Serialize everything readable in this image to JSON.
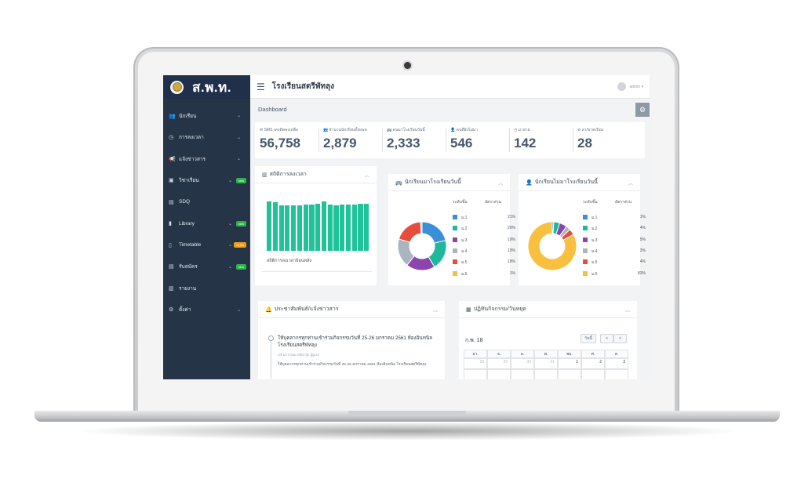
{
  "app": {
    "brand": "ส.พ.ท.",
    "school_name": "โรงเรียนสตรีพัทลุง",
    "user_name": "admin ▾"
  },
  "sidebar": {
    "items": [
      {
        "label": "นักเรียน",
        "icon": "users-icon",
        "badge": ""
      },
      {
        "label": "การลงเวลา",
        "icon": "clock-icon",
        "badge": ""
      },
      {
        "label": "แจ้งข่าวสาร",
        "icon": "megaphone-icon",
        "badge": ""
      },
      {
        "label": "วิชาเรียน",
        "icon": "calendar-check-icon",
        "badge": "new"
      },
      {
        "label": "SDQ",
        "icon": "clipboard-icon",
        "badge": ""
      },
      {
        "label": "Library",
        "icon": "book-icon",
        "badge": "new"
      },
      {
        "label": "Timetable",
        "icon": "file-icon",
        "badge": "alpha"
      },
      {
        "label": "รับสมัคร",
        "icon": "form-icon",
        "badge": "new"
      },
      {
        "label": "รายงาน",
        "icon": "bar-chart-icon",
        "badge": ""
      },
      {
        "label": "ตั้งค่า",
        "icon": "cogs-icon",
        "badge": ""
      }
    ]
  },
  "page": {
    "title": "Dashboard"
  },
  "stats": [
    {
      "label": "SMS เครดิตคงเหลือ",
      "value": "56,758",
      "icon": "sms-icon"
    },
    {
      "label": "จำนวนนักเรียนทั้งหมด",
      "value": "2,879",
      "icon": "users-icon"
    },
    {
      "label": "คนมาโรงเรียนวันนี้",
      "value": "2,333",
      "icon": "bus-icon"
    },
    {
      "label": "คนที่ยังไม่มา",
      "value": "546",
      "icon": "user-times-icon"
    },
    {
      "label": "มาสาย",
      "value": "142",
      "icon": "clock-icon"
    },
    {
      "label": "ลา/ขาดเรียน",
      "value": "28",
      "icon": "ban-icon"
    }
  ],
  "cards": {
    "time_stats": {
      "title": "สถิติการลงเวลา",
      "caption": "สถิติการลงเวลาย้อนหลัง"
    },
    "present_today": {
      "title": "นักเรียนมาโรงเรียนวันนี้",
      "col_level": "ระดับชั้น",
      "col_pct": "อัตราส่วน"
    },
    "absent_today": {
      "title": "นักเรียนไม่มาโรงเรียนวันนี้",
      "col_level": "ระดับชั้น",
      "col_pct": "อัตราส่วน"
    },
    "news": {
      "title": "ประชาสัมพันธ์/แจ้งข่าวสาร",
      "item_title": "ให้บุคลากรทุกท่านเข้าร่วมกิจกรรมวันที่ 25-26 มกราคม 2561 ห้องอินทนิล โรงเรียนสตรีพัทลุง",
      "item_meta": "24 มกราคม 2561 by ผู้ดูแล",
      "item_body": "ให้บุคลากรทุกท่านเข้าร่วมกิจกรรมวันที่ 25-26 มกราคม 2561 ห้องอินทนิล โรงเรียนสตรีพัทลุง"
    },
    "calendar": {
      "title": "ปฏิทินกิจกรรม/วันหยุด",
      "month": "ก.พ. 18",
      "today_label": "วันนี้",
      "prev": "<",
      "next": ">",
      "weekdays": [
        "อา.",
        "จ.",
        "อ.",
        "พ.",
        "พฤ.",
        "ศ.",
        "ส."
      ],
      "first_week": [
        "28",
        "29",
        "30",
        "31",
        "1",
        "2",
        "3"
      ]
    }
  },
  "chart_data": [
    {
      "type": "bar",
      "title": "สถิติการลงเวลา",
      "xlabel": "สถิติการลงเวลาย้อนหลัง",
      "ylabel": "",
      "values": [
        88,
        86,
        80,
        81,
        81,
        81,
        82,
        82,
        83,
        87,
        82,
        80,
        82,
        82,
        82,
        83,
        83
      ],
      "ylim": [
        0,
        100
      ],
      "color": "#20c29a"
    },
    {
      "type": "pie",
      "title": "นักเรียนมาโรงเรียนวันนี้",
      "categories": [
        "ม.1",
        "ม.2",
        "ม.3",
        "ม.4",
        "ม.5",
        "ม.6"
      ],
      "values": [
        21,
        20,
        19,
        19,
        19,
        1
      ],
      "labels": [
        "21%",
        "20%",
        "19%",
        "19%",
        "19%",
        "1%"
      ],
      "colors": [
        "#3b8fd9",
        "#20b89a",
        "#8e44ad",
        "#a9b6bf",
        "#e74c3c",
        "#f8c03e"
      ]
    },
    {
      "type": "pie",
      "title": "นักเรียนไม่มาโรงเรียนวันนี้",
      "categories": [
        "ม.1",
        "ม.2",
        "ม.3",
        "ม.4",
        "ม.5",
        "ม.6"
      ],
      "values": [
        1,
        4,
        5,
        3,
        4,
        83
      ],
      "labels": [
        "1%",
        "4%",
        "5%",
        "3%",
        "4%",
        "83%"
      ],
      "colors": [
        "#3b8fd9",
        "#20b89a",
        "#8e44ad",
        "#a9b6bf",
        "#e74c3c",
        "#f8c03e"
      ]
    }
  ]
}
